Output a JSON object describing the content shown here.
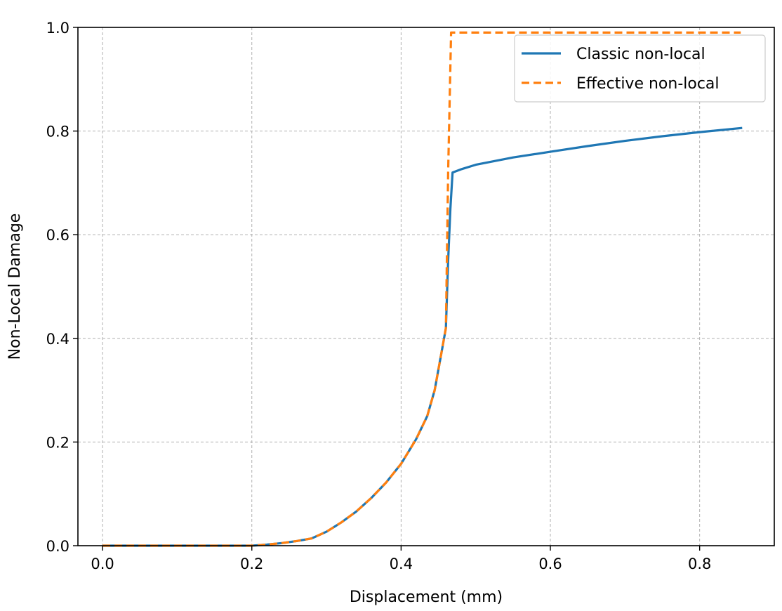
{
  "chart_data": {
    "type": "line",
    "title": "",
    "xlabel": "Displacement (mm)",
    "ylabel": "Non-Local Damage",
    "xlim": [
      -0.033,
      0.9
    ],
    "ylim": [
      0.0,
      1.0
    ],
    "xticks": [
      {
        "value": 0.0,
        "label": "0.0"
      },
      {
        "value": 0.2,
        "label": "0.2"
      },
      {
        "value": 0.4,
        "label": "0.4"
      },
      {
        "value": 0.6,
        "label": "0.6"
      },
      {
        "value": 0.8,
        "label": "0.8"
      }
    ],
    "yticks": [
      {
        "value": 0.0,
        "label": "0.0"
      },
      {
        "value": 0.2,
        "label": "0.2"
      },
      {
        "value": 0.4,
        "label": "0.4"
      },
      {
        "value": 0.6,
        "label": "0.6"
      },
      {
        "value": 0.8,
        "label": "0.8"
      },
      {
        "value": 1.0,
        "label": "1.0"
      }
    ],
    "grid": true,
    "legend_position": "top-right",
    "series": [
      {
        "name": "Classic non-local",
        "color": "#1f77b4",
        "style": "solid",
        "x": [
          0.0,
          0.1,
          0.2,
          0.22,
          0.24,
          0.26,
          0.28,
          0.3,
          0.32,
          0.34,
          0.36,
          0.38,
          0.4,
          0.42,
          0.435,
          0.445,
          0.455,
          0.46,
          0.463,
          0.466,
          0.469,
          0.48,
          0.5,
          0.55,
          0.6,
          0.65,
          0.7,
          0.75,
          0.8,
          0.857
        ],
        "y": [
          0.0,
          0.0,
          0.0,
          0.002,
          0.005,
          0.009,
          0.014,
          0.027,
          0.045,
          0.066,
          0.092,
          0.122,
          0.158,
          0.205,
          0.25,
          0.3,
          0.38,
          0.42,
          0.55,
          0.65,
          0.72,
          0.726,
          0.735,
          0.749,
          0.76,
          0.771,
          0.781,
          0.79,
          0.798,
          0.806
        ]
      },
      {
        "name": "Effective non-local",
        "color": "#ff7f0e",
        "style": "dashed",
        "x": [
          0.0,
          0.1,
          0.2,
          0.22,
          0.24,
          0.26,
          0.28,
          0.3,
          0.32,
          0.34,
          0.36,
          0.38,
          0.4,
          0.42,
          0.435,
          0.445,
          0.455,
          0.46,
          0.463,
          0.467,
          0.6,
          0.7,
          0.8,
          0.855
        ],
        "y": [
          0.0,
          0.0,
          0.0,
          0.002,
          0.005,
          0.009,
          0.014,
          0.027,
          0.045,
          0.066,
          0.092,
          0.122,
          0.158,
          0.205,
          0.25,
          0.3,
          0.38,
          0.42,
          0.72,
          0.99,
          0.99,
          0.99,
          0.99,
          0.99
        ]
      }
    ]
  }
}
